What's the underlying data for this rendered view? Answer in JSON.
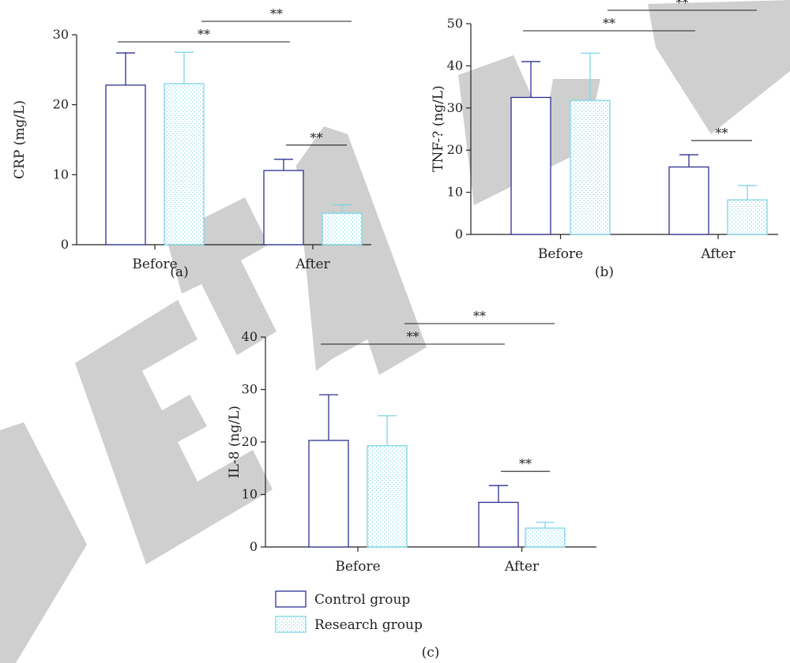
{
  "colors": {
    "control": "#2e3192",
    "research": "#7fd6e8",
    "watermark": "#cfcfcf",
    "axis": "#222222"
  },
  "watermark_text": "RETRACTED",
  "legend": [
    {
      "name": "Control group",
      "fill": "none"
    },
    {
      "name": "Research group",
      "fill": "dotted"
    }
  ],
  "chart_data": [
    {
      "type": "bar",
      "panel_label": "(a)",
      "ylabel": "CRP (mg/L)",
      "ylim": [
        0,
        30
      ],
      "yticks": [
        0,
        10,
        20,
        30
      ],
      "categories": [
        "Before",
        "After"
      ],
      "series": [
        {
          "name": "Control group",
          "values": [
            22.8,
            10.6
          ],
          "errors": [
            4.6,
            1.6
          ]
        },
        {
          "name": "Research group",
          "values": [
            23.0,
            4.5
          ],
          "errors": [
            4.5,
            1.2
          ]
        }
      ],
      "significance": [
        {
          "label": "**",
          "from": "Before Control group",
          "to": "After Control group"
        },
        {
          "label": "**",
          "from": "Before Research group",
          "to": "After Research group"
        },
        {
          "label": "**",
          "from": "After Control group",
          "to": "After Research group"
        }
      ]
    },
    {
      "type": "bar",
      "panel_label": "(b)",
      "ylabel": "TNF-? (ng/L)",
      "ylim": [
        0,
        50
      ],
      "yticks": [
        0,
        10,
        20,
        30,
        40,
        50
      ],
      "categories": [
        "Before",
        "After"
      ],
      "series": [
        {
          "name": "Control group",
          "values": [
            32.5,
            16.0
          ],
          "errors": [
            8.5,
            2.9
          ]
        },
        {
          "name": "Research group",
          "values": [
            31.8,
            8.2
          ],
          "errors": [
            11.2,
            3.4
          ]
        }
      ],
      "significance": [
        {
          "label": "**",
          "from": "Before Control group",
          "to": "After Control group"
        },
        {
          "label": "**",
          "from": "Before Research group",
          "to": "After Research group"
        },
        {
          "label": "**",
          "from": "After Control group",
          "to": "After Research group"
        }
      ]
    },
    {
      "type": "bar",
      "panel_label": "(c)",
      "ylabel": "IL-8 (ng/L)",
      "ylim": [
        0,
        40
      ],
      "yticks": [
        0,
        10,
        20,
        30,
        40
      ],
      "categories": [
        "Before",
        "After"
      ],
      "series": [
        {
          "name": "Control group",
          "values": [
            20.3,
            8.5
          ],
          "errors": [
            8.7,
            3.2
          ]
        },
        {
          "name": "Research group",
          "values": [
            19.3,
            3.6
          ],
          "errors": [
            5.7,
            1.1
          ]
        }
      ],
      "significance": [
        {
          "label": "**",
          "from": "Before Control group",
          "to": "After Control group"
        },
        {
          "label": "**",
          "from": "Before Research group",
          "to": "After Research group"
        },
        {
          "label": "**",
          "from": "After Control group",
          "to": "After Research group"
        }
      ]
    }
  ]
}
